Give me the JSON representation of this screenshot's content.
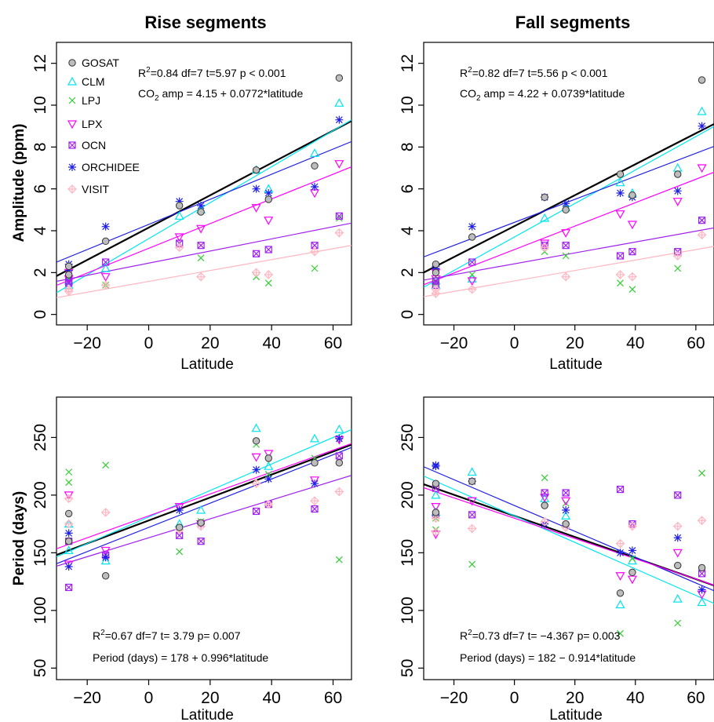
{
  "figure": {
    "column_titles": [
      "Rise segments",
      "Fall segments"
    ],
    "ylabels": [
      "Amplitude (ppm)",
      "Period (days)"
    ],
    "xlabel": "Latitude"
  },
  "legend": {
    "entries": [
      "GOSAT",
      "CLM",
      "LPJ",
      "LPX",
      "OCN",
      "ORCHIDEE",
      "VISIT"
    ]
  },
  "colors": {
    "GOSAT": "#666666",
    "CLM": "#00e5ee",
    "LPJ": "#33cc33",
    "LPX": "#ff00ff",
    "OCN": "#a020f0",
    "ORCHIDEE": "#1f1fe6",
    "VISIT": "#ffb6c1"
  },
  "panels": [
    {
      "column": 0,
      "row": 0,
      "stats": [
        "=0.84  df=7  t=5.97  p < 0.001",
        "amp = 4.15 + 0.0772*latitude"
      ],
      "stats_prefix": [
        "R",
        "CO"
      ]
    },
    {
      "column": 1,
      "row": 0,
      "stats": [
        "=0.82  df=7  t=5.56  p < 0.001",
        "amp = 4.22 + 0.0739*latitude"
      ],
      "stats_prefix": [
        "R",
        "CO"
      ]
    },
    {
      "column": 0,
      "row": 1,
      "stats": [
        "=0.67  df=7  t= 3.79  p= 0.007",
        "Period (days) = 178 + 0.996*latitude"
      ],
      "stats_prefix": [
        "R",
        ""
      ]
    },
    {
      "column": 1,
      "row": 1,
      "stats": [
        "=0.73  df=7  t= −4.367  p= 0.003",
        "Period (days) = 182 − 0.914*latitude"
      ],
      "stats_prefix": [
        "R",
        ""
      ]
    }
  ],
  "chart_data": [
    {
      "type": "scatter",
      "title": "Rise segments",
      "xlabel": "Latitude",
      "ylabel": "Amplitude (ppm)",
      "xlim": [
        -30,
        66
      ],
      "ylim": [
        -0.5,
        13
      ],
      "xticks": [
        -20,
        0,
        20,
        40,
        60
      ],
      "yticks": [
        0,
        2,
        4,
        6,
        8,
        10,
        12
      ],
      "legend": "top-left",
      "series": [
        {
          "name": "GOSAT",
          "x": [
            -26,
            -26,
            -14,
            10,
            17,
            35,
            39,
            54,
            62
          ],
          "y": [
            2.3,
            1.9,
            3.5,
            5.2,
            4.9,
            6.9,
            5.5,
            7.1,
            11.3
          ]
        },
        {
          "name": "CLM",
          "x": [
            -26,
            -26,
            -14,
            10,
            17,
            35,
            39,
            54,
            62
          ],
          "y": [
            1.6,
            1.4,
            2.2,
            4.7,
            5.0,
            6.9,
            6.0,
            7.7,
            10.1
          ]
        },
        {
          "name": "LPJ",
          "x": [
            -26,
            -26,
            -14,
            10,
            17,
            35,
            39,
            54,
            62
          ],
          "y": [
            1.7,
            1.5,
            1.4,
            3.4,
            2.7,
            1.8,
            1.5,
            2.2,
            4.6
          ]
        },
        {
          "name": "LPX",
          "x": [
            -26,
            -26,
            -14,
            10,
            17,
            35,
            39,
            54,
            62
          ],
          "y": [
            2.0,
            1.7,
            1.8,
            3.7,
            4.1,
            5.1,
            4.5,
            5.8,
            7.2
          ]
        },
        {
          "name": "OCN",
          "x": [
            -26,
            -26,
            -14,
            10,
            17,
            35,
            39,
            54,
            62
          ],
          "y": [
            1.5,
            1.6,
            2.5,
            3.4,
            3.3,
            2.9,
            3.1,
            3.3,
            4.7
          ]
        },
        {
          "name": "ORCHIDEE",
          "x": [
            -26,
            -26,
            -14,
            10,
            17,
            35,
            39,
            54,
            62
          ],
          "y": [
            2.4,
            2.1,
            4.2,
            5.4,
            5.2,
            6.0,
            5.8,
            6.1,
            9.3
          ]
        },
        {
          "name": "VISIT",
          "x": [
            -26,
            -26,
            -14,
            10,
            17,
            35,
            39,
            54,
            62
          ],
          "y": [
            1.2,
            1.1,
            1.4,
            3.2,
            1.8,
            2.0,
            1.9,
            3.0,
            3.9
          ]
        }
      ],
      "fits": [
        {
          "name": "GOSAT",
          "intercept": 4.15,
          "slope": 0.0772
        },
        {
          "name": "CLM",
          "intercept": 3.62,
          "slope": 0.086
        },
        {
          "name": "LPX",
          "intercept": 3.16,
          "slope": 0.059
        },
        {
          "name": "OCN",
          "intercept": 2.45,
          "slope": 0.029
        },
        {
          "name": "ORCHIDEE",
          "intercept": 4.3,
          "slope": 0.06
        },
        {
          "name": "VISIT",
          "intercept": 1.58,
          "slope": 0.026
        }
      ]
    },
    {
      "type": "scatter",
      "title": "Fall segments",
      "xlabel": "Latitude",
      "ylabel": "Amplitude (ppm)",
      "xlim": [
        -30,
        66
      ],
      "ylim": [
        -0.5,
        13
      ],
      "xticks": [
        -20,
        0,
        20,
        40,
        60
      ],
      "yticks": [
        0,
        2,
        4,
        6,
        8,
        10,
        12
      ],
      "series": [
        {
          "name": "GOSAT",
          "x": [
            -26,
            -26,
            -14,
            10,
            17,
            35,
            39,
            54,
            62
          ],
          "y": [
            2.4,
            2.0,
            3.7,
            5.6,
            5.0,
            6.7,
            5.7,
            6.7,
            11.2
          ]
        },
        {
          "name": "CLM",
          "x": [
            -26,
            -26,
            -14,
            10,
            17,
            35,
            39,
            54,
            62
          ],
          "y": [
            1.6,
            1.4,
            1.7,
            4.6,
            5.1,
            6.3,
            5.8,
            7.0,
            9.7
          ]
        },
        {
          "name": "LPJ",
          "x": [
            -26,
            -26,
            -14,
            10,
            17,
            35,
            39,
            54,
            62
          ],
          "y": [
            1.8,
            1.5,
            1.9,
            3.0,
            2.8,
            1.5,
            1.2,
            2.2,
            4.5
          ]
        },
        {
          "name": "LPX",
          "x": [
            -26,
            -26,
            -14,
            10,
            17,
            35,
            39,
            54,
            62
          ],
          "y": [
            2.0,
            1.7,
            1.6,
            3.4,
            3.9,
            4.8,
            4.3,
            5.4,
            7.0
          ]
        },
        {
          "name": "OCN",
          "x": [
            -26,
            -26,
            -14,
            10,
            17,
            35,
            39,
            54,
            62
          ],
          "y": [
            1.6,
            1.4,
            2.5,
            3.3,
            3.3,
            2.8,
            3.0,
            3.0,
            4.5
          ]
        },
        {
          "name": "ORCHIDEE",
          "x": [
            -26,
            -26,
            -14,
            10,
            17,
            35,
            39,
            54,
            62
          ],
          "y": [
            2.3,
            2.2,
            4.2,
            5.6,
            5.3,
            5.8,
            5.6,
            5.9,
            9.0
          ]
        },
        {
          "name": "VISIT",
          "x": [
            -26,
            -26,
            -14,
            10,
            17,
            35,
            39,
            54,
            62
          ],
          "y": [
            1.2,
            1.0,
            1.2,
            3.2,
            1.8,
            1.9,
            1.8,
            2.8,
            3.8
          ]
        }
      ],
      "fits": [
        {
          "name": "GOSAT",
          "intercept": 4.22,
          "slope": 0.0739
        },
        {
          "name": "CLM",
          "intercept": 3.7,
          "slope": 0.08
        },
        {
          "name": "LPX",
          "intercept": 3.1,
          "slope": 0.056
        },
        {
          "name": "OCN",
          "intercept": 2.42,
          "slope": 0.026
        },
        {
          "name": "ORCHIDEE",
          "intercept": 4.4,
          "slope": 0.055
        },
        {
          "name": "VISIT",
          "intercept": 1.6,
          "slope": 0.025
        }
      ]
    },
    {
      "type": "scatter",
      "title": "",
      "xlabel": "Latitude",
      "ylabel": "Period (days)",
      "xlim": [
        -30,
        66
      ],
      "ylim": [
        40,
        285
      ],
      "xticks": [
        -20,
        0,
        20,
        40,
        60
      ],
      "yticks": [
        50,
        100,
        150,
        200,
        250
      ],
      "series": [
        {
          "name": "GOSAT",
          "x": [
            -26,
            -26,
            -14,
            10,
            17,
            35,
            39,
            54,
            62
          ],
          "y": [
            184,
            160,
            130,
            172,
            176,
            247,
            232,
            228,
            228
          ]
        },
        {
          "name": "CLM",
          "x": [
            -26,
            -26,
            -14,
            10,
            17,
            35,
            39,
            54,
            62
          ],
          "y": [
            175,
            152,
            143,
            175,
            187,
            258,
            225,
            249,
            257
          ]
        },
        {
          "name": "LPJ",
          "x": [
            -26,
            -26,
            -14,
            10,
            17,
            35,
            39,
            54,
            62
          ],
          "y": [
            220,
            211,
            226,
            151,
            177,
            244,
            218,
            232,
            144
          ]
        },
        {
          "name": "LPX",
          "x": [
            -26,
            -26,
            -14,
            10,
            17,
            35,
            39,
            54,
            62
          ],
          "y": [
            200,
            140,
            152,
            190,
            175,
            233,
            236,
            213,
            248
          ]
        },
        {
          "name": "OCN",
          "x": [
            -26,
            -26,
            -14,
            10,
            17,
            35,
            39,
            54,
            62
          ],
          "y": [
            160,
            120,
            148,
            165,
            160,
            186,
            192,
            188,
            234
          ]
        },
        {
          "name": "ORCHIDEE",
          "x": [
            -26,
            -26,
            -14,
            10,
            17,
            35,
            39,
            54,
            62
          ],
          "y": [
            167,
            138,
            146,
            187,
            175,
            222,
            214,
            210,
            249
          ]
        },
        {
          "name": "VISIT",
          "x": [
            -26,
            -26,
            -14,
            10,
            17,
            35,
            39,
            54,
            62
          ],
          "y": [
            197,
            175,
            185,
            170,
            173,
            210,
            192,
            195,
            203
          ]
        }
      ],
      "fits": [
        {
          "name": "GOSAT",
          "intercept": 178,
          "slope": 0.996
        },
        {
          "name": "CLM",
          "intercept": 181,
          "slope": 1.15
        },
        {
          "name": "LPX",
          "intercept": 182,
          "slope": 0.95
        },
        {
          "name": "ORCHIDEE",
          "intercept": 172,
          "slope": 1.05
        },
        {
          "name": "OCN",
          "intercept": 163,
          "slope": 0.82
        }
      ]
    },
    {
      "type": "scatter",
      "title": "",
      "xlabel": "Latitude",
      "ylabel": "Period (days)",
      "xlim": [
        -30,
        66
      ],
      "ylim": [
        40,
        285
      ],
      "xticks": [
        -20,
        0,
        20,
        40,
        60
      ],
      "yticks": [
        50,
        100,
        150,
        200,
        250
      ],
      "series": [
        {
          "name": "GOSAT",
          "x": [
            -26,
            -26,
            -14,
            10,
            17,
            35,
            39,
            54,
            62
          ],
          "y": [
            210,
            185,
            212,
            191,
            175,
            115,
            133,
            139,
            137
          ]
        },
        {
          "name": "CLM",
          "x": [
            -26,
            -26,
            -14,
            10,
            17,
            35,
            39,
            54,
            62
          ],
          "y": [
            200,
            185,
            220,
            197,
            182,
            105,
            143,
            110,
            107
          ]
        },
        {
          "name": "LPJ",
          "x": [
            -26,
            -26,
            -14,
            10,
            17,
            35,
            39,
            54,
            62
          ],
          "y": [
            180,
            170,
            140,
            215,
            193,
            80,
            145,
            89,
            219
          ]
        },
        {
          "name": "LPX",
          "x": [
            -26,
            -26,
            -14,
            10,
            17,
            35,
            39,
            54,
            62
          ],
          "y": [
            166,
            190,
            195,
            198,
            195,
            130,
            127,
            150,
            114
          ]
        },
        {
          "name": "OCN",
          "x": [
            -26,
            -26,
            -14,
            10,
            17,
            35,
            39,
            54,
            62
          ],
          "y": [
            206,
            183,
            183,
            202,
            202,
            205,
            175,
            200,
            132
          ]
        },
        {
          "name": "ORCHIDEE",
          "x": [
            -26,
            -26,
            -14,
            10,
            17,
            35,
            39,
            54,
            62
          ],
          "y": [
            226,
            225,
            212,
            175,
            187,
            150,
            152,
            163,
            118
          ]
        },
        {
          "name": "VISIT",
          "x": [
            -26,
            -26,
            -14,
            10,
            17,
            35,
            39,
            54,
            62
          ],
          "y": [
            168,
            180,
            171,
            177,
            172,
            158,
            173,
            173,
            178
          ]
        }
      ],
      "fits": [
        {
          "name": "GOSAT",
          "intercept": 182,
          "slope": -0.914
        },
        {
          "name": "CLM",
          "intercept": 182,
          "slope": -1.15
        },
        {
          "name": "ORCHIDEE",
          "intercept": 191,
          "slope": -1.12
        },
        {
          "name": "LPX",
          "intercept": 180,
          "slope": -0.88
        }
      ]
    }
  ]
}
